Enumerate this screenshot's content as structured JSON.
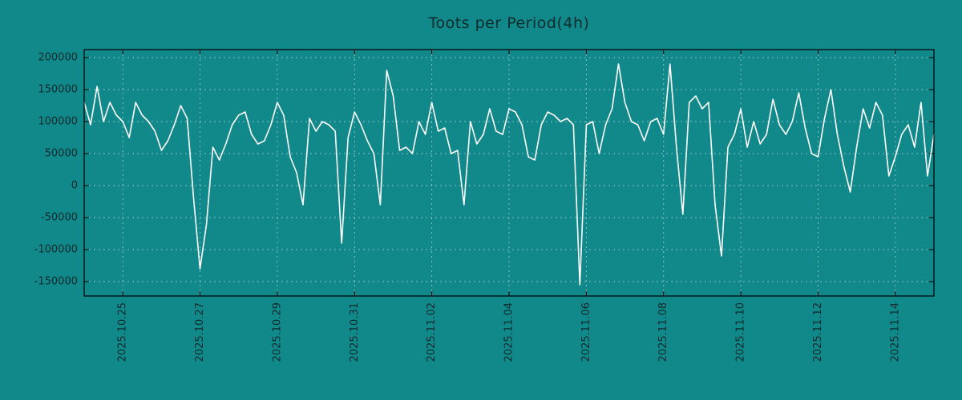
{
  "chart_data": {
    "type": "line",
    "title": "Toots per Period(4h)",
    "xlabel": "",
    "ylabel": "",
    "legend": "none",
    "grid": true,
    "period_hours": 4,
    "points_per_day": 6,
    "x_total_days": 22,
    "x_tick_labels": [
      "2025.10.25",
      "2025.10.27",
      "2025.10.29",
      "2025.10.31",
      "2025.11.02",
      "2025.11.04",
      "2025.11.06",
      "2025.11.08",
      "2025.11.10",
      "2025.11.12",
      "2025.11.14"
    ],
    "x_tick_day_offsets": [
      1,
      3,
      5,
      7,
      9,
      11,
      13,
      15,
      17,
      19,
      21
    ],
    "y_ticks": [
      200000,
      150000,
      100000,
      50000,
      0,
      -50000,
      -100000,
      -150000
    ],
    "ylim": [
      -172500,
      212500
    ],
    "colors": {
      "background": "#11898b",
      "line": "#ffffff",
      "grid": "#bfdcdc",
      "axis": "#000000",
      "text": "#062b2b"
    },
    "series": [
      {
        "name": "toots",
        "values": [
          130000,
          95000,
          155000,
          100000,
          130000,
          110000,
          100000,
          75000,
          130000,
          110000,
          100000,
          85000,
          55000,
          70000,
          95000,
          125000,
          105000,
          -20000,
          -130000,
          -60000,
          60000,
          40000,
          65000,
          95000,
          110000,
          115000,
          80000,
          65000,
          70000,
          95000,
          130000,
          110000,
          45000,
          20000,
          -30000,
          105000,
          85000,
          100000,
          95000,
          85000,
          -90000,
          75000,
          115000,
          95000,
          70000,
          50000,
          -30000,
          180000,
          140000,
          55000,
          60000,
          50000,
          100000,
          80000,
          130000,
          85000,
          90000,
          50000,
          55000,
          -30000,
          100000,
          65000,
          80000,
          120000,
          85000,
          80000,
          120000,
          115000,
          95000,
          45000,
          40000,
          95000,
          115000,
          110000,
          100000,
          105000,
          95000,
          -155000,
          95000,
          100000,
          50000,
          95000,
          120000,
          190000,
          130000,
          100000,
          95000,
          70000,
          100000,
          105000,
          80000,
          190000,
          60000,
          -45000,
          130000,
          140000,
          120000,
          130000,
          -30000,
          -110000,
          60000,
          80000,
          120000,
          60000,
          100000,
          65000,
          80000,
          135000,
          95000,
          80000,
          100000,
          145000,
          90000,
          50000,
          45000,
          105000,
          150000,
          80000,
          30000,
          -10000,
          60000,
          120000,
          90000,
          130000,
          110000,
          15000,
          45000,
          80000,
          95000,
          60000,
          130000,
          15000,
          80000
        ]
      }
    ]
  }
}
